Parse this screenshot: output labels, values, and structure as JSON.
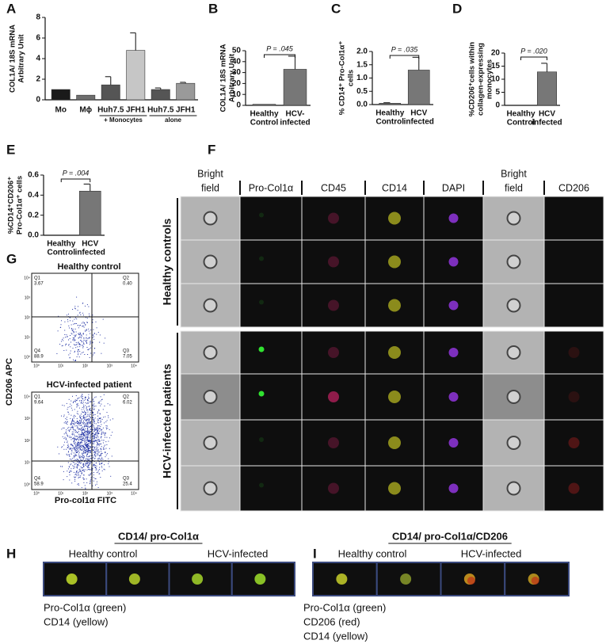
{
  "chart_data": [
    {
      "type": "bar",
      "panel": "A",
      "y_label": [
        "COL1A/ 18S mRNA",
        "Arbitrary Unit"
      ],
      "categories": [
        "Mo",
        "Mϕ",
        "Huh7.5",
        "JFH1",
        "Huh7.5",
        "JFH1"
      ],
      "group_labels": [
        "+ Monocytes",
        "alone"
      ],
      "values": [
        1,
        0.45,
        1.45,
        4.8,
        1.0,
        1.6
      ],
      "errors": [
        0,
        0,
        0.8,
        1.7,
        0.15,
        0.1
      ],
      "colors": [
        "#1a1a1a",
        "#6e6e6e",
        "#555555",
        "#c6c6c6",
        "#555555",
        "#9a9a9a"
      ],
      "ylim": [
        0,
        8
      ],
      "yticks": [
        0,
        2,
        4,
        6,
        8
      ]
    },
    {
      "type": "bar",
      "panel": "B",
      "y_label": [
        "COL1A/ 18S mRNA",
        "Arbitrary Unit"
      ],
      "categories": [
        [
          "Healthy",
          "Control"
        ],
        [
          "HCV-",
          "infected"
        ]
      ],
      "values": [
        1,
        33
      ],
      "errors": [
        0,
        12
      ],
      "color": "#777777",
      "annotation": "P = .045",
      "ylim": [
        0,
        50
      ],
      "yticks": [
        0,
        10,
        20,
        30,
        40,
        50
      ]
    },
    {
      "type": "bar",
      "panel": "C",
      "y_label": [
        "% CD14⁺ Pro-Col1α⁺",
        "cells"
      ],
      "categories": [
        [
          "Healthy",
          "Control"
        ],
        [
          "HCV",
          "infected"
        ]
      ],
      "values": [
        0.05,
        1.3
      ],
      "errors": [
        0.02,
        0.48
      ],
      "color": "#777777",
      "annotation": "P = .035",
      "ylim": [
        0,
        2
      ],
      "yticks": [
        {
          "value": 0,
          "label": "0.0"
        },
        {
          "value": 0.5,
          "label": "0.5"
        },
        {
          "value": 1,
          "label": "1.0"
        },
        {
          "value": 1.5,
          "label": "1.5"
        },
        {
          "value": 2,
          "label": "2.0"
        }
      ]
    },
    {
      "type": "bar",
      "panel": "D",
      "y_label": [
        "%CD206⁺cells within",
        "collagen-expressing",
        "monocytes"
      ],
      "categories": [
        [
          "Healthy",
          "Control"
        ],
        [
          "HCV",
          "infected"
        ]
      ],
      "values": [
        0,
        12.8
      ],
      "errors": [
        0,
        3.3
      ],
      "color": "#777777",
      "annotation": "P = .020",
      "ylim": [
        0,
        20
      ],
      "yticks": [
        0,
        5,
        10,
        15,
        20
      ]
    },
    {
      "type": "bar",
      "panel": "E",
      "y_label": [
        "%CD14⁺CD206⁺",
        "Pro-Col1α⁺ cells"
      ],
      "categories": [
        [
          "Healthy",
          "Control"
        ],
        [
          "HCV",
          "infected"
        ]
      ],
      "values": [
        0,
        0.44
      ],
      "errors": [
        0,
        0.07
      ],
      "color": "#777777",
      "annotation": "P = .004",
      "ylim": [
        0,
        0.6
      ],
      "yticks": [
        {
          "value": 0,
          "label": "0.0"
        },
        {
          "value": 0.2,
          "label": "0.2"
        },
        {
          "value": 0.4,
          "label": "0.4"
        },
        {
          "value": 0.6,
          "label": "0.6"
        }
      ]
    }
  ],
  "imaging": {
    "panel": "F",
    "columns": [
      [
        "Bright",
        "field"
      ],
      [
        "Pro-Col1α"
      ],
      [
        "CD45"
      ],
      [
        "CD14"
      ],
      [
        "DAPI"
      ],
      [
        "Bright",
        "field"
      ],
      [
        "CD206"
      ]
    ],
    "row_groups": [
      "Healthy controls",
      "HCV-infected patients"
    ]
  },
  "flow": {
    "panel": "G",
    "y_label": "CD206 APC",
    "x_label": "Pro-col1α FITC",
    "axis_ticks": [
      "10⁰",
      "10¹",
      "10²",
      "10³",
      "10⁴"
    ],
    "plots": [
      {
        "title": "Healthy control",
        "quadrants": [
          [
            "Q1",
            "3.67"
          ],
          [
            "Q2",
            "0.40"
          ],
          [
            "Q4",
            "88.9"
          ],
          [
            "Q3",
            "7.05"
          ]
        ]
      },
      {
        "title": "HCV-infected patient",
        "quadrants": [
          [
            "Q1",
            "9.64"
          ],
          [
            "Q2",
            "6.02"
          ],
          [
            "Q4",
            "58.9"
          ],
          [
            "Q3",
            "25.4"
          ]
        ]
      }
    ]
  },
  "panel_h": {
    "panel": "H",
    "title": "CD14/ pro-Col1α",
    "groups": [
      "Healthy control",
      "HCV-infected"
    ],
    "legend": [
      "Pro-Col1α (green)",
      "CD14 (yellow)"
    ]
  },
  "panel_i": {
    "panel": "I",
    "title": "CD14/ pro-Col1α/CD206",
    "groups": [
      "Healthy control",
      "HCV-infected"
    ],
    "legend": [
      "Pro-Col1α (green)",
      "CD206 (red)",
      "CD14 (yellow)"
    ]
  }
}
